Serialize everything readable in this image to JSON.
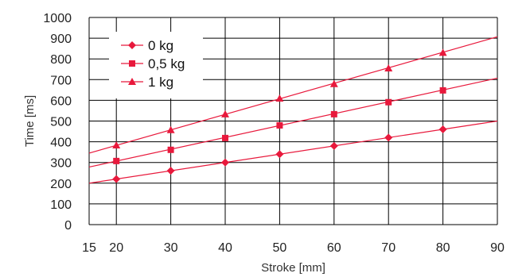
{
  "chart_data": {
    "type": "line",
    "title": "",
    "xlabel": "Stroke [mm]",
    "ylabel": "Time [ms]",
    "xlim": [
      15,
      90
    ],
    "ylim": [
      0,
      1000
    ],
    "x_ticks": [
      15,
      20,
      30,
      40,
      50,
      60,
      70,
      80,
      90
    ],
    "y_ticks": [
      0,
      100,
      200,
      300,
      400,
      500,
      600,
      700,
      800,
      900,
      1000
    ],
    "grid": true,
    "legend_position": "top-left",
    "line_color": "#e8193c",
    "series": [
      {
        "name": "0 kg",
        "marker": "diamond",
        "x": [
          20,
          30,
          40,
          50,
          60,
          70,
          80
        ],
        "values": [
          220,
          260,
          300,
          340,
          380,
          420,
          460
        ],
        "line_start": [
          15,
          200
        ],
        "line_end": [
          90,
          500
        ]
      },
      {
        "name": "0,5 kg",
        "marker": "square",
        "x": [
          20,
          30,
          40,
          50,
          60,
          70,
          80
        ],
        "values": [
          307,
          361,
          418,
          479,
          533,
          591,
          648
        ],
        "line_start": [
          15,
          278
        ],
        "line_end": [
          90,
          707
        ]
      },
      {
        "name": "1 kg",
        "marker": "triangle",
        "x": [
          20,
          30,
          40,
          50,
          60,
          70,
          80
        ],
        "values": [
          383,
          457,
          533,
          609,
          679,
          755,
          830
        ],
        "line_start": [
          15,
          345
        ],
        "line_end": [
          90,
          907
        ]
      }
    ]
  }
}
